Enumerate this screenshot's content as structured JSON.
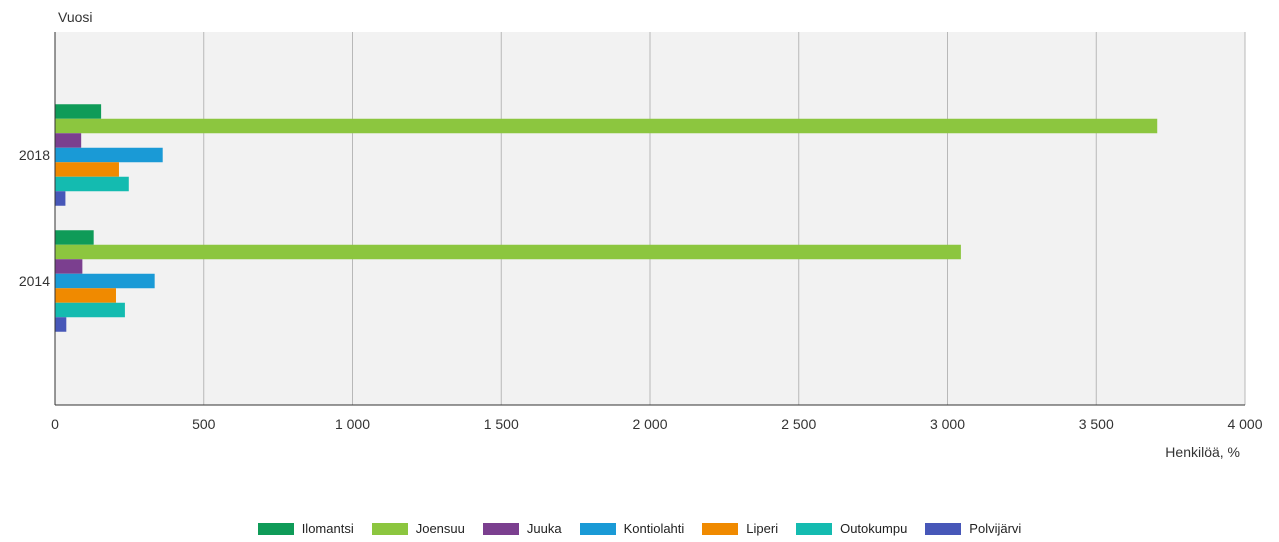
{
  "chart_data": {
    "type": "bar",
    "orientation": "horizontal",
    "y_axis_title": "Vuosi",
    "x_axis_title": "Henkilöä, %",
    "categories": [
      "2018",
      "2014"
    ],
    "xlim": [
      0,
      4000
    ],
    "x_ticks": [
      {
        "value": 0,
        "label": "0"
      },
      {
        "value": 500,
        "label": "500"
      },
      {
        "value": 1000,
        "label": "1 000"
      },
      {
        "value": 1500,
        "label": "1 500"
      },
      {
        "value": 2000,
        "label": "2 000"
      },
      {
        "value": 2500,
        "label": "2 500"
      },
      {
        "value": 3000,
        "label": "3 000"
      },
      {
        "value": 3500,
        "label": "3 500"
      },
      {
        "value": 4000,
        "label": "4 000"
      }
    ],
    "grid": true,
    "legend_position": "bottom",
    "series": [
      {
        "name": "Ilomantsi",
        "color": "#0f9b58",
        "values": [
          155,
          130
        ]
      },
      {
        "name": "Joensuu",
        "color": "#8cc63f",
        "values": [
          3705,
          3045
        ]
      },
      {
        "name": "Juuka",
        "color": "#7b3f8f",
        "values": [
          88,
          92
        ]
      },
      {
        "name": "Kontiolahti",
        "color": "#1a9ad6",
        "values": [
          362,
          335
        ]
      },
      {
        "name": "Liperi",
        "color": "#f08a00",
        "values": [
          215,
          205
        ]
      },
      {
        "name": "Outokumpu",
        "color": "#14bbb0",
        "values": [
          248,
          235
        ]
      },
      {
        "name": "Polvijärvi",
        "color": "#4757b8",
        "values": [
          35,
          38
        ]
      }
    ]
  }
}
